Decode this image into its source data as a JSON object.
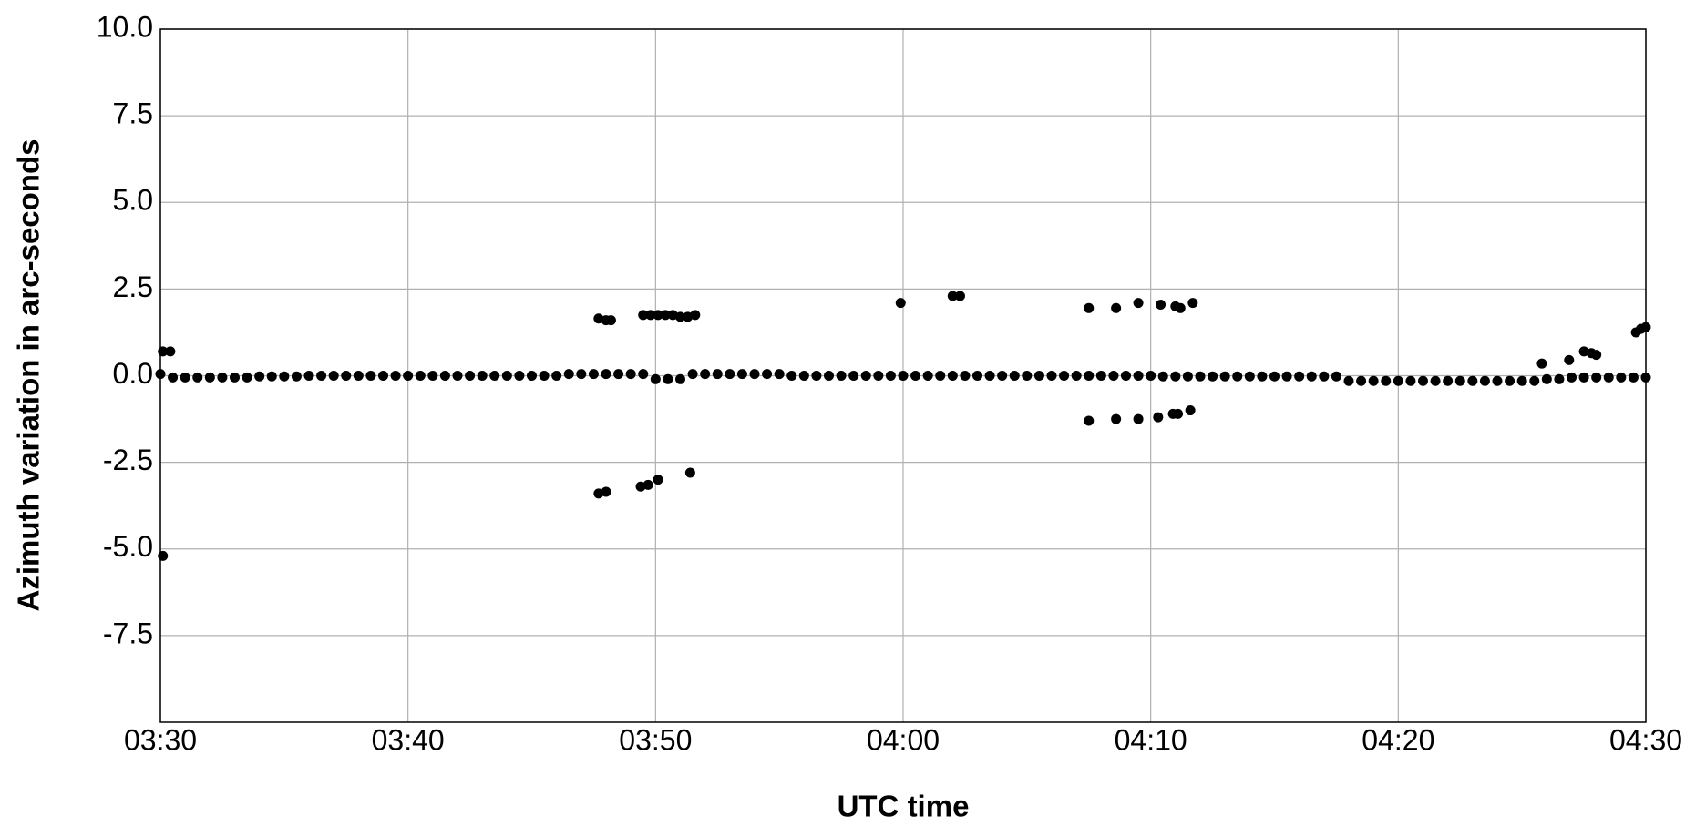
{
  "chart_data": {
    "type": "scatter",
    "xlabel": "UTC time",
    "ylabel": "Azimuth variation in arc-seconds",
    "xlim": [
      210,
      270
    ],
    "xticks": [
      {
        "value": 210,
        "label": "03:30"
      },
      {
        "value": 220,
        "label": "03:40"
      },
      {
        "value": 230,
        "label": "03:50"
      },
      {
        "value": 240,
        "label": "04:00"
      },
      {
        "value": 250,
        "label": "04:10"
      },
      {
        "value": 260,
        "label": "04:20"
      },
      {
        "value": 270,
        "label": "04:30"
      }
    ],
    "ylim": [
      -10,
      10
    ],
    "yticks": [
      -7.5,
      {
        "value": -5,
        "label": "-5.0"
      },
      -2.5,
      {
        "value": 0,
        "label": "0.0"
      },
      2.5,
      {
        "value": 5,
        "label": "5.0"
      },
      7.5,
      {
        "value": 10,
        "label": "10.0"
      }
    ],
    "grid": true,
    "series": [
      {
        "color": "#000000",
        "x": [
          210,
          210.5,
          211,
          211.5,
          212,
          212.5,
          213,
          213.5,
          214,
          214.5,
          215,
          215.5,
          216,
          216.5,
          217,
          217.5,
          218,
          218.5,
          219,
          219.5,
          220,
          220.5,
          221,
          221.5,
          222,
          222.5,
          223,
          223.5,
          224,
          224.5,
          225,
          225.5,
          226,
          226.5,
          227,
          227.5,
          228,
          228.5,
          229,
          229.5,
          230,
          230.5,
          231,
          231.5,
          232,
          232.5,
          233,
          233.5,
          234,
          234.5,
          235,
          235.5,
          236,
          236.5,
          237,
          237.5,
          238,
          238.5,
          239,
          239.5,
          240,
          240.5,
          241,
          241.5,
          242,
          242.5,
          243,
          243.5,
          244,
          244.5,
          245,
          245.5,
          246,
          246.5,
          247,
          247.5,
          248,
          248.5,
          249,
          249.5,
          250,
          250.5,
          251,
          251.5,
          252,
          252.5,
          253,
          253.5,
          254,
          254.5,
          255,
          255.5,
          256,
          256.5,
          257,
          257.5,
          258,
          258.5,
          259,
          259.5,
          260,
          260.5,
          261,
          261.5,
          262,
          262.5,
          263,
          263.5,
          264,
          264.5,
          265,
          265.5,
          266,
          266.5,
          267,
          267.5,
          268,
          268.5,
          269,
          269.5,
          270,
          210.1,
          210.4,
          210.1,
          227.7,
          228.0,
          228.2,
          229.5,
          229.8,
          230.1,
          230.4,
          230.7,
          231.0,
          231.3,
          231.6,
          227.7,
          228.0,
          229.4,
          229.7,
          230.1,
          231.4,
          239.9,
          242.0,
          242.3,
          247.5,
          248.6,
          249.5,
          250.4,
          251.0,
          251.2,
          251.7,
          247.5,
          248.6,
          249.5,
          250.3,
          250.9,
          251.1,
          251.6,
          265.8,
          266.9,
          267.5,
          267.8,
          268.0,
          269.6,
          269.8,
          270
        ],
        "values": [
          0.05,
          -0.05,
          -0.05,
          -0.05,
          -0.05,
          -0.05,
          -0.05,
          -0.05,
          -0.02,
          -0.02,
          -0.02,
          -0.02,
          0,
          0,
          0,
          0,
          0,
          0,
          0,
          0,
          0,
          0,
          0,
          0,
          0,
          0,
          0,
          0,
          0,
          0,
          0,
          0,
          0,
          0.05,
          0.05,
          0.05,
          0.05,
          0.05,
          0.05,
          0.05,
          -0.1,
          -0.1,
          -0.1,
          0.05,
          0.05,
          0.05,
          0.05,
          0.05,
          0.05,
          0.05,
          0.05,
          0,
          0,
          0,
          0,
          0,
          0,
          0,
          0,
          0,
          0,
          0,
          0,
          0,
          0,
          0,
          0,
          0,
          0,
          0,
          0,
          0,
          0,
          0,
          0,
          0,
          0,
          0,
          0,
          0,
          0,
          -0.02,
          -0.02,
          -0.02,
          -0.02,
          -0.02,
          -0.02,
          -0.02,
          -0.02,
          -0.02,
          -0.02,
          -0.02,
          -0.02,
          -0.02,
          -0.02,
          -0.02,
          -0.15,
          -0.15,
          -0.15,
          -0.15,
          -0.15,
          -0.15,
          -0.15,
          -0.15,
          -0.15,
          -0.15,
          -0.15,
          -0.15,
          -0.15,
          -0.15,
          -0.15,
          -0.15,
          -0.1,
          -0.1,
          -0.05,
          -0.05,
          -0.05,
          -0.05,
          -0.05,
          -0.05,
          -0.05,
          0.7,
          0.7,
          -5.2,
          1.65,
          1.6,
          1.6,
          1.75,
          1.75,
          1.75,
          1.75,
          1.75,
          1.7,
          1.7,
          1.75,
          -3.4,
          -3.35,
          -3.2,
          -3.15,
          -3.0,
          -2.8,
          2.1,
          2.3,
          2.3,
          1.95,
          1.95,
          2.1,
          2.05,
          2.0,
          1.95,
          2.1,
          -1.3,
          -1.25,
          -1.25,
          -1.2,
          -1.1,
          -1.1,
          -1.0,
          0.35,
          0.45,
          0.7,
          0.65,
          0.6,
          1.25,
          1.35,
          1.4
        ]
      }
    ]
  }
}
